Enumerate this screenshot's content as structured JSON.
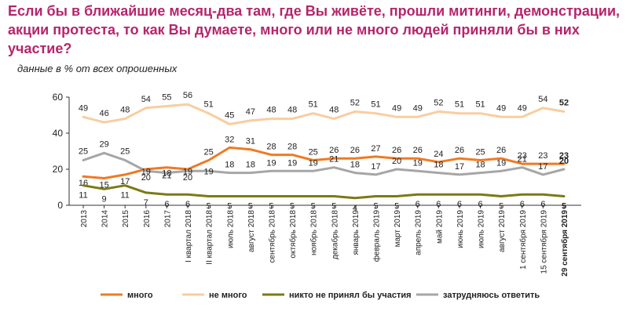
{
  "title": "Если бы в ближайшие месяц-два там, где Вы живёте, прошли митинги, демонстрации, акции протеста, то как Вы думаете, много или не много людей приняли бы в них участие?",
  "subtitle": "данные в % от всех опрошенных",
  "chart_data": {
    "type": "line",
    "title": "Если бы в ближайшие месяц-два там, где Вы живёте, прошли митинги, демонстрации, акции протеста, то как Вы думаете, много или не много людей приняли бы в них участие?",
    "subtitle": "данные в % от всех опрошенных",
    "xlabel": "",
    "ylabel": "",
    "ylim": [
      0,
      60
    ],
    "yticks": [
      0,
      20,
      40,
      60
    ],
    "grid": false,
    "legend_position": "bottom",
    "categories": [
      "2013",
      "2014",
      "2015",
      "2016",
      "2017",
      "I квартал 2018",
      "II квартал 2018",
      "июль 2018",
      "август 2018",
      "сентябрь 2018",
      "октябрь 2018",
      "ноябрь 2018",
      "декабрь 2018",
      "январь 2019",
      "февраль 2019",
      "март 2019",
      "апрель 2019",
      "май 2019",
      "июнь 2019",
      "июль 2019",
      "август 2019",
      "1 сентября 2019",
      "15 сентября 2019",
      "29 сентября 2019"
    ],
    "series": [
      {
        "name": "много",
        "color": "#f07a22",
        "values": [
          16,
          15,
          17,
          20,
          21,
          20,
          25,
          32,
          31,
          28,
          28,
          25,
          26,
          26,
          27,
          26,
          26,
          24,
          26,
          25,
          26,
          23,
          23,
          23
        ]
      },
      {
        "name": "не много",
        "color": "#f9cda0",
        "values": [
          49,
          46,
          48,
          54,
          55,
          56,
          51,
          45,
          47,
          48,
          48,
          51,
          48,
          52,
          51,
          49,
          49,
          52,
          51,
          51,
          49,
          49,
          54,
          52
        ]
      },
      {
        "name": "никто не принял бы участия",
        "color": "#7a7a16",
        "values": [
          11,
          9,
          11,
          7,
          6,
          6,
          5,
          5,
          5,
          5,
          5,
          5,
          5,
          4,
          5,
          5,
          6,
          6,
          6,
          6,
          5,
          6,
          6,
          5
        ]
      },
      {
        "name": "затрудняюсь ответить",
        "color": "#a6a6a6",
        "values": [
          25,
          29,
          25,
          19,
          18,
          19,
          19,
          18,
          18,
          19,
          19,
          19,
          21,
          18,
          17,
          20,
          19,
          18,
          17,
          18,
          19,
          21,
          17,
          20
        ]
      }
    ]
  }
}
